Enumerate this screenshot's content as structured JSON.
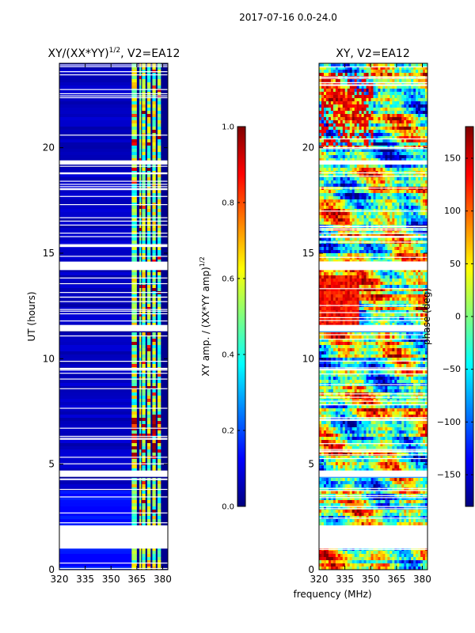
{
  "figure": {
    "suptitle": "2017-07-16 0.0-24.0",
    "xlabel": "frequency (MHz)"
  },
  "colors": {
    "background": "#ffffff",
    "panel_fill": "#00008f",
    "jet": [
      "#00007f",
      "#0000ff",
      "#007fff",
      "#00ffff",
      "#7fff7f",
      "#ffff00",
      "#ff7f00",
      "#ff0000",
      "#7f0000"
    ]
  },
  "chart_data": [
    {
      "type": "heatmap",
      "title": "XY/(XX*YY)",
      "title_exponent": "1/2",
      "title_suffix": ", V2=EA12",
      "xlabel": "",
      "ylabel": "UT (hours)",
      "xlim": [
        320,
        383
      ],
      "ylim": [
        0,
        24
      ],
      "xticks": [
        "320",
        "335",
        "350",
        "365",
        "380"
      ],
      "xtick_values": [
        320,
        335,
        350,
        365,
        380
      ],
      "yticks": [
        "0",
        "5",
        "10",
        "15",
        "20"
      ],
      "ytick_values": [
        0,
        5,
        10,
        15,
        20
      ],
      "colorbar": {
        "label": "XY amp. / (XX*YY amp)",
        "label_exponent": "1/2",
        "range": [
          0,
          1
        ],
        "ticks": [
          "0.0",
          "0.2",
          "0.4",
          "0.6",
          "0.8",
          "1.0"
        ],
        "tick_values": [
          0,
          0.2,
          0.4,
          0.6,
          0.8,
          1.0
        ]
      },
      "bright_channels_mhz": [
        [
          362,
          365
        ],
        [
          366.5,
          367.5
        ],
        [
          368,
          370
        ],
        [
          371,
          373
        ],
        [
          374,
          376
        ],
        [
          377,
          379
        ]
      ],
      "blank_time_ranges_hours": [
        [
          1.0,
          2.1
        ],
        [
          4.4,
          4.7
        ],
        [
          11.3,
          11.6
        ],
        [
          14.2,
          14.6
        ],
        [
          19.2,
          19.4
        ]
      ]
    },
    {
      "type": "heatmap",
      "title": "XY, V2=EA12",
      "xlabel": "frequency (MHz)",
      "ylabel": "",
      "xlim": [
        320,
        383
      ],
      "ylim": [
        0,
        24
      ],
      "xticks": [
        "320",
        "335",
        "350",
        "365",
        "380"
      ],
      "xtick_values": [
        320,
        335,
        350,
        365,
        380
      ],
      "yticks": [
        "0",
        "5",
        "10",
        "15",
        "20"
      ],
      "ytick_values": [
        0,
        5,
        10,
        15,
        20
      ],
      "colorbar": {
        "label": "phase (deg)",
        "range": [
          -180,
          180
        ],
        "ticks": [
          "−150",
          "−100",
          "−50",
          "0",
          "50",
          "100",
          "150"
        ],
        "tick_values": [
          -150,
          -100,
          -50,
          0,
          50,
          100,
          150
        ]
      },
      "blank_time_ranges_hours": [
        [
          1.0,
          2.1
        ],
        [
          4.4,
          4.7
        ],
        [
          11.3,
          11.6
        ],
        [
          14.2,
          14.6
        ],
        [
          19.2,
          19.4
        ]
      ]
    }
  ]
}
